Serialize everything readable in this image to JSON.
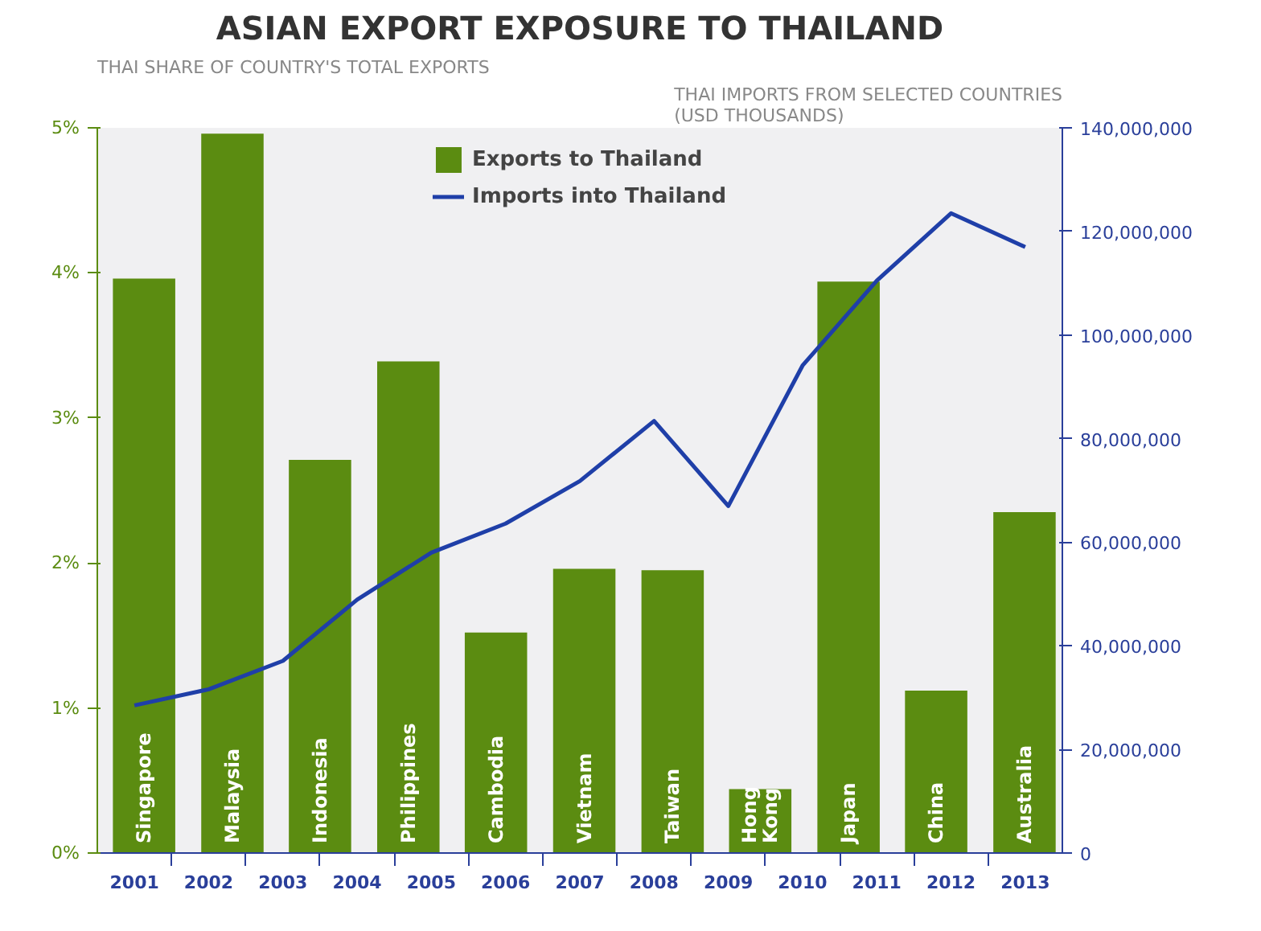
{
  "chart_data": {
    "type": "bar",
    "title": "ASIAN EXPORT EXPOSURE TO THAILAND",
    "ylabel": "THAI SHARE OF COUNTRY'S TOTAL EXPORTS",
    "y2label": "THAI IMPORTS FROM SELECTED COUNTRIES\n(USD THOUSANDS)",
    "series": [
      {
        "name": "Exports to Thailand",
        "type": "bar",
        "color": "#5b8c11",
        "x": [
          2001.13,
          2002.32,
          2003.5,
          2004.69,
          2005.87,
          2007.06,
          2008.25,
          2009.43,
          2010.62,
          2011.8,
          2012.99
        ],
        "values": [
          3.96,
          4.96,
          2.71,
          3.39,
          1.52,
          1.96,
          1.95,
          0.44,
          3.94,
          1.12,
          2.35
        ]
      },
      {
        "name": "Imports into Thailand",
        "type": "line",
        "axis": "y2",
        "color": "#1f3fa8",
        "x": [
          2001,
          2002,
          2003,
          2004,
          2005,
          2006,
          2007,
          2008,
          2009,
          2010,
          2011,
          2012,
          2013
        ],
        "values": [
          28500000,
          31600000,
          37100000,
          48900000,
          58000000,
          63600000,
          71800000,
          83400000,
          67000000,
          94100000,
          110500000,
          123500000,
          117000000
        ]
      }
    ],
    "annotations": [
      {
        "text": "Singapore",
        "x": 2001.13,
        "y": 0
      },
      {
        "text": "Malaysia",
        "x": 2002.32,
        "y": 0
      },
      {
        "text": "Indonesia",
        "x": 2003.5,
        "y": 0
      },
      {
        "text": "Philippines",
        "x": 2004.69,
        "y": 0
      },
      {
        "text": "Cambodia",
        "x": 2005.87,
        "y": 0
      },
      {
        "text": "Vietnam",
        "x": 2007.06,
        "y": 0
      },
      {
        "text": "Taiwan",
        "x": 2008.25,
        "y": 0
      },
      {
        "text": "Hong\nKong",
        "x": 2009.43,
        "y": 0
      },
      {
        "text": "Japan",
        "x": 2010.62,
        "y": 0
      },
      {
        "text": "China",
        "x": 2011.8,
        "y": 0
      },
      {
        "text": "Australia",
        "x": 2012.99,
        "y": 0
      }
    ],
    "xlim": [
      2000.5,
      2013.5
    ],
    "xticks": [
      2001,
      2002,
      2003,
      2004,
      2005,
      2006,
      2007,
      2008,
      2009,
      2010,
      2011,
      2012,
      2013
    ],
    "ylim": [
      0,
      5
    ],
    "yticks": [
      {
        "value": 0,
        "label": "0%"
      },
      {
        "value": 1,
        "label": "1%"
      },
      {
        "value": 2,
        "label": "2%"
      },
      {
        "value": 3,
        "label": "3%"
      },
      {
        "value": 4,
        "label": "4%"
      },
      {
        "value": 5,
        "label": "5%"
      }
    ],
    "y2lim": [
      0,
      140000000
    ],
    "y2ticks": [
      0,
      {
        "value": 20000000,
        "label": "20,000,000"
      },
      {
        "value": 40000000,
        "label": "40,000,000"
      },
      {
        "value": 60000000,
        "label": "60,000,000"
      },
      {
        "value": 80000000,
        "label": "80,000,000"
      },
      {
        "value": 100000000,
        "label": "100,000,000"
      },
      {
        "value": 120000000,
        "label": "120,000,000"
      },
      {
        "value": 140000000,
        "label": "140,000,000"
      }
    ],
    "legend": "top",
    "grid": false
  }
}
